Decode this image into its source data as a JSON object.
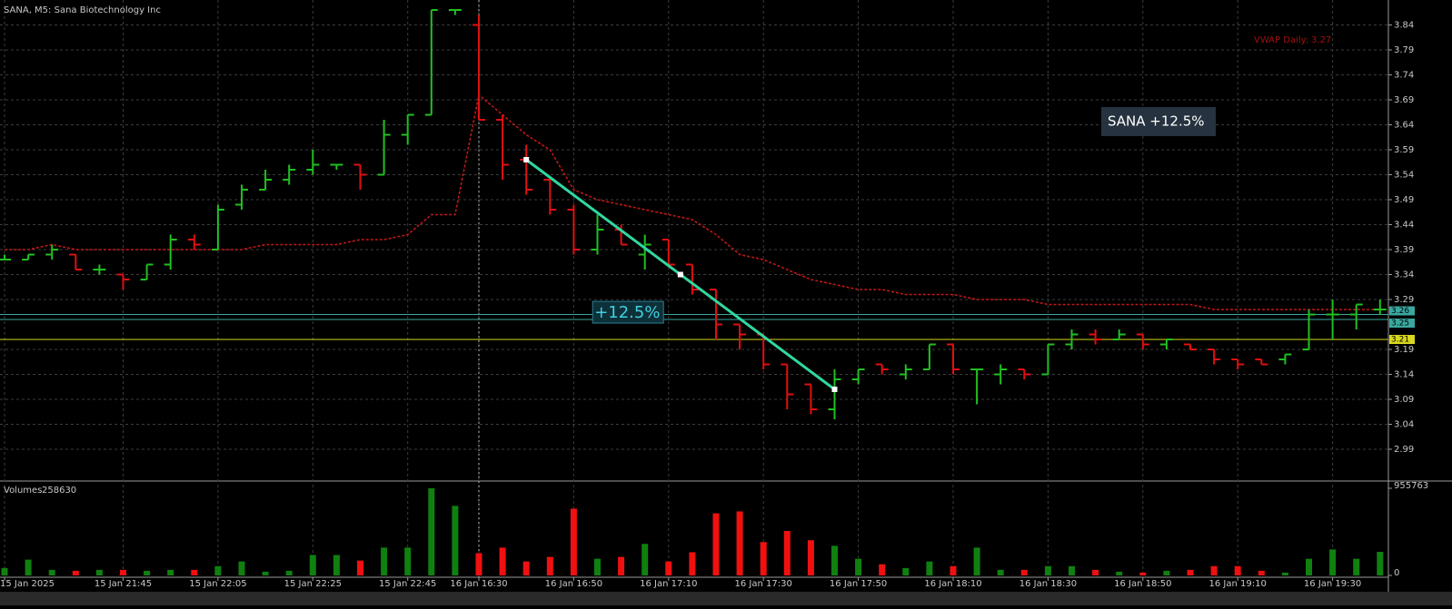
{
  "chart_data": {
    "type": "ohlc",
    "title": "SANA, M5:  Sana Biotechnology Inc",
    "categories": [
      "15 Jan 2025",
      null,
      null,
      null,
      null,
      "15 Jan 21:45",
      null,
      null,
      null,
      "15 Jan 22:05",
      null,
      null,
      null,
      "15 Jan 22:25",
      null,
      null,
      null,
      "15 Jan 22:45",
      null,
      null,
      "16 Jan 16:30",
      null,
      null,
      null,
      "16 Jan 16:50",
      null,
      null,
      null,
      "16 Jan 17:10",
      null,
      null,
      null,
      "16 Jan 17:30",
      null,
      null,
      null,
      "16 Jan 17:50",
      null,
      null,
      null,
      "16 Jan 18:10",
      null,
      null,
      null,
      "16 Jan 18:30",
      null,
      null,
      null,
      "16 Jan 18:50",
      null,
      null,
      null,
      "16 Jan 19:10",
      null,
      null,
      null,
      "16 Jan 19:30",
      null,
      null
    ],
    "open": [
      3.37,
      3.37,
      3.38,
      3.38,
      3.35,
      3.34,
      3.33,
      3.36,
      3.41,
      3.39,
      3.48,
      3.51,
      3.53,
      3.55,
      3.56,
      3.56,
      3.54,
      3.62,
      3.66,
      3.87,
      3.84,
      3.65,
      3.57,
      3.53,
      3.47,
      3.39,
      3.43,
      3.38,
      3.41,
      3.36,
      3.31,
      3.24,
      3.22,
      3.16,
      3.12,
      3.07,
      3.13,
      3.16,
      3.14,
      3.15,
      3.2,
      3.15,
      3.14,
      3.15,
      3.14,
      3.2,
      3.22,
      3.21,
      3.22,
      3.2,
      3.2,
      3.19,
      3.17,
      3.17,
      3.17,
      3.19,
      3.26,
      3.26,
      3.27
    ],
    "high": [
      3.38,
      3.38,
      3.4,
      3.38,
      3.36,
      3.34,
      3.36,
      3.42,
      3.42,
      3.48,
      3.52,
      3.55,
      3.56,
      3.59,
      3.56,
      3.56,
      3.65,
      3.66,
      3.87,
      3.87,
      3.86,
      3.66,
      3.6,
      3.53,
      3.48,
      3.46,
      3.44,
      3.42,
      3.41,
      3.36,
      3.31,
      3.24,
      3.22,
      3.16,
      3.12,
      3.15,
      3.15,
      3.16,
      3.16,
      3.2,
      3.2,
      3.15,
      3.16,
      3.15,
      3.2,
      3.23,
      3.23,
      3.23,
      3.22,
      3.21,
      3.2,
      3.19,
      3.17,
      3.17,
      3.18,
      3.27,
      3.29,
      3.28,
      3.29
    ],
    "low": [
      3.37,
      3.37,
      3.37,
      3.35,
      3.34,
      3.31,
      3.33,
      3.35,
      3.39,
      3.39,
      3.47,
      3.51,
      3.52,
      3.54,
      3.55,
      3.51,
      3.54,
      3.6,
      3.66,
      3.86,
      3.65,
      3.53,
      3.5,
      3.46,
      3.38,
      3.38,
      3.4,
      3.35,
      3.36,
      3.3,
      3.21,
      3.19,
      3.15,
      3.07,
      3.06,
      3.05,
      3.12,
      3.14,
      3.13,
      3.15,
      3.14,
      3.08,
      3.12,
      3.13,
      3.14,
      3.19,
      3.2,
      3.21,
      3.19,
      3.19,
      3.19,
      3.16,
      3.15,
      3.16,
      3.16,
      3.19,
      3.21,
      3.23,
      3.26
    ],
    "close": [
      3.37,
      3.38,
      3.39,
      3.35,
      3.35,
      3.33,
      3.36,
      3.41,
      3.4,
      3.47,
      3.51,
      3.53,
      3.55,
      3.56,
      3.56,
      3.54,
      3.62,
      3.66,
      3.87,
      3.87,
      3.65,
      3.56,
      3.51,
      3.47,
      3.39,
      3.43,
      3.4,
      3.4,
      3.36,
      3.31,
      3.24,
      3.22,
      3.16,
      3.1,
      3.07,
      3.13,
      3.15,
      3.15,
      3.15,
      3.2,
      3.15,
      3.15,
      3.15,
      3.14,
      3.2,
      3.22,
      3.21,
      3.22,
      3.2,
      3.21,
      3.19,
      3.17,
      3.16,
      3.16,
      3.18,
      3.26,
      3.26,
      3.28,
      3.27
    ],
    "vwap": [
      3.39,
      3.39,
      3.4,
      3.39,
      3.39,
      3.39,
      3.39,
      3.39,
      3.39,
      3.39,
      3.39,
      3.4,
      3.4,
      3.4,
      3.4,
      3.41,
      3.41,
      3.42,
      3.46,
      3.46,
      3.7,
      3.66,
      3.62,
      3.59,
      3.51,
      3.49,
      3.48,
      3.47,
      3.46,
      3.45,
      3.42,
      3.38,
      3.37,
      3.35,
      3.33,
      3.32,
      3.31,
      3.31,
      3.3,
      3.3,
      3.3,
      3.29,
      3.29,
      3.29,
      3.28,
      3.28,
      3.28,
      3.28,
      3.28,
      3.28,
      3.28,
      3.27,
      3.27,
      3.27,
      3.27,
      3.27,
      3.27,
      3.27,
      3.27
    ],
    "vwap_label": "VWAP Daily:",
    "vwap_color": "#c01818",
    "volume_label": "Volumes",
    "volume": [
      81000,
      173000,
      61000,
      51000,
      61000,
      61000,
      51000,
      61000,
      61000,
      102000,
      153000,
      41000,
      51000,
      224000,
      224000,
      163000,
      305000,
      305000,
      955763,
      763000,
      244000,
      305000,
      153000,
      203000,
      732000,
      183000,
      203000,
      346000,
      153000,
      254000,
      681000,
      702000,
      366000,
      488000,
      386000,
      325000,
      183000,
      122000,
      81000,
      153000,
      102000,
      305000,
      61000,
      61000,
      102000,
      102000,
      61000,
      41000,
      31000,
      51000,
      61000,
      102000,
      102000,
      51000,
      31000,
      183000,
      285000,
      183000,
      258630
    ],
    "up_color": "#20c020",
    "down_color": "#e01010",
    "volume_up_color": "#108010",
    "volume_down_color": "#f01010",
    "ylim": [
      2.93,
      3.89
    ],
    "yticks": [
      3.84,
      3.79,
      3.74,
      3.69,
      3.64,
      3.59,
      3.54,
      3.49,
      3.44,
      3.39,
      3.34,
      3.29,
      3.19,
      3.14,
      3.09,
      3.04,
      2.99
    ],
    "volume_lim": [
      0,
      955763
    ],
    "volume_ticks": [
      955763,
      0
    ],
    "grid": true,
    "day_separator": 20,
    "levels": [
      {
        "value": 3.26,
        "label": "3.26",
        "color": "#3aa8a0"
      },
      {
        "value": 3.25,
        "label": "3.25",
        "color": "#3aa8a0"
      },
      {
        "value": 3.21,
        "label": "3.21",
        "color": "#d8d820"
      }
    ],
    "trend_line": {
      "start": 22,
      "end": 35,
      "start_price": 3.57,
      "end_price": 3.11,
      "label": "+12.5%",
      "color": "#30d8a0"
    },
    "info_box": "SANA +12.5%"
  }
}
